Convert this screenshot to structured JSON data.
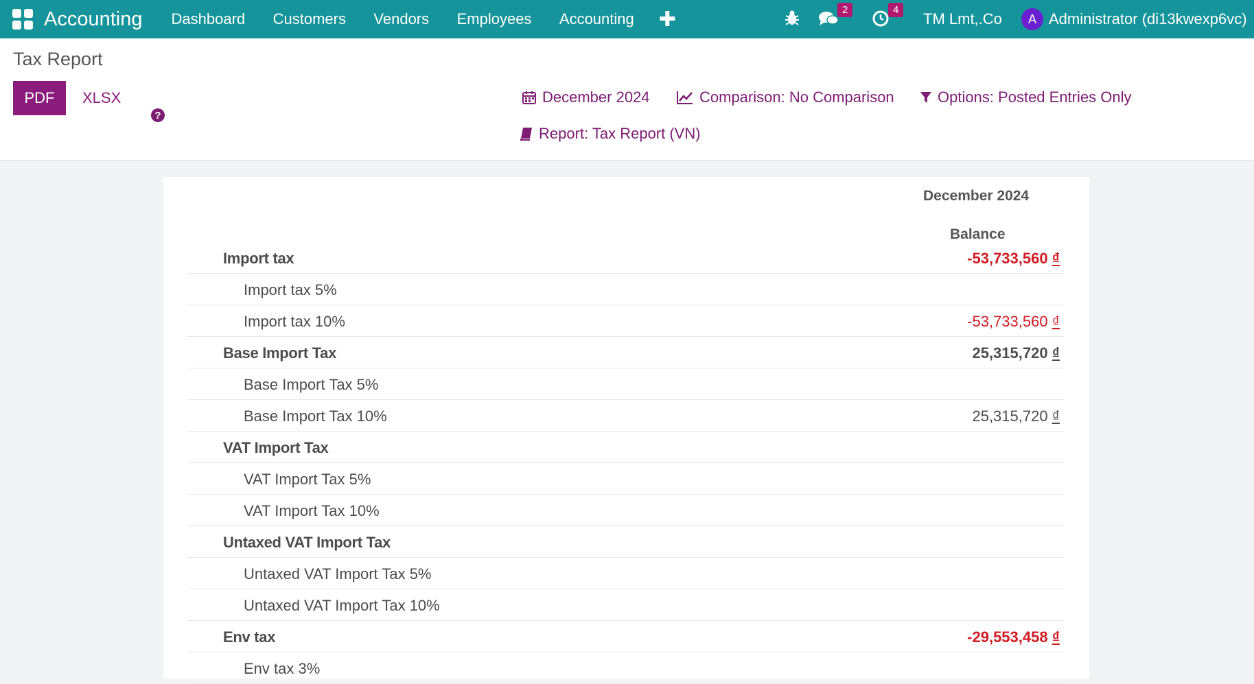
{
  "topbar": {
    "brand": "Accounting",
    "menu": [
      "Dashboard",
      "Customers",
      "Vendors",
      "Employees",
      "Accounting"
    ],
    "plus": "✚",
    "messages_count": "2",
    "activities_count": "4",
    "company": "TM Lmt,.Co",
    "avatar_initial": "A",
    "user": "Administrator (di13kwexp6vc)"
  },
  "control_panel": {
    "title": "Tax Report",
    "pdf_label": "PDF",
    "xlsx_label": "XLSX",
    "help_glyph": "?",
    "date_filter": "December 2024",
    "comparison_filter": "Comparison: No Comparison",
    "options_filter": "Options: Posted Entries Only",
    "report_filter": "Report: Tax Report (VN)"
  },
  "report": {
    "period_header": "December 2024",
    "column_header": "Balance",
    "currency_symbol": "₫",
    "rows": [
      {
        "label": "Import tax",
        "level": "main",
        "value": "-53,733,560",
        "negative": true
      },
      {
        "label": "Import tax 5%",
        "level": "sub",
        "value": "",
        "negative": false
      },
      {
        "label": "Import tax 10%",
        "level": "sub",
        "value": "-53,733,560",
        "negative": true
      },
      {
        "label": "Base Import Tax",
        "level": "main",
        "value": "25,315,720",
        "negative": false
      },
      {
        "label": "Base Import Tax 5%",
        "level": "sub",
        "value": "",
        "negative": false
      },
      {
        "label": "Base Import Tax 10%",
        "level": "sub",
        "value": "25,315,720",
        "negative": false
      },
      {
        "label": "VAT Import Tax",
        "level": "main",
        "value": "",
        "negative": false
      },
      {
        "label": "VAT Import Tax 5%",
        "level": "sub",
        "value": "",
        "negative": false
      },
      {
        "label": "VAT Import Tax 10%",
        "level": "sub",
        "value": "",
        "negative": false
      },
      {
        "label": "Untaxed VAT Import Tax",
        "level": "main",
        "value": "",
        "negative": false
      },
      {
        "label": "Untaxed VAT Import Tax 5%",
        "level": "sub",
        "value": "",
        "negative": false
      },
      {
        "label": "Untaxed VAT Import Tax 10%",
        "level": "sub",
        "value": "",
        "negative": false
      },
      {
        "label": "Env tax",
        "level": "main",
        "value": "-29,553,458",
        "negative": true
      },
      {
        "label": "Env tax 3%",
        "level": "sub",
        "value": "",
        "negative": false
      }
    ]
  },
  "colors": {
    "topbar": "#15949b",
    "primary": "#8a1d7c",
    "negative": "#d01b24"
  }
}
